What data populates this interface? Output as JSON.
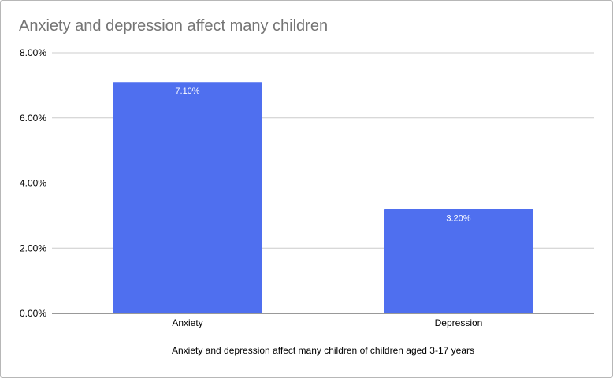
{
  "chart_data": {
    "type": "bar",
    "title": "Anxiety and depression affect many children",
    "xlabel": "Anxiety and depression affect many children of children aged 3-17 years",
    "ylabel": "",
    "categories": [
      "Anxiety",
      "Depression"
    ],
    "series": [
      {
        "values": [
          7.1,
          3.2
        ],
        "data_labels": [
          "7.10%",
          "3.20%"
        ],
        "color": "#4f6fef"
      }
    ],
    "ylim": [
      0,
      8
    ],
    "yticks": [
      0,
      2,
      4,
      6,
      8
    ],
    "ytick_labels": [
      "0.00%",
      "2.00%",
      "4.00%",
      "6.00%",
      "8.00%"
    ],
    "grid": true,
    "legend": "none"
  },
  "colors": {
    "bar": "#4f6fef",
    "grid": "#cccccc",
    "axis": "#333333",
    "title": "#757575"
  }
}
